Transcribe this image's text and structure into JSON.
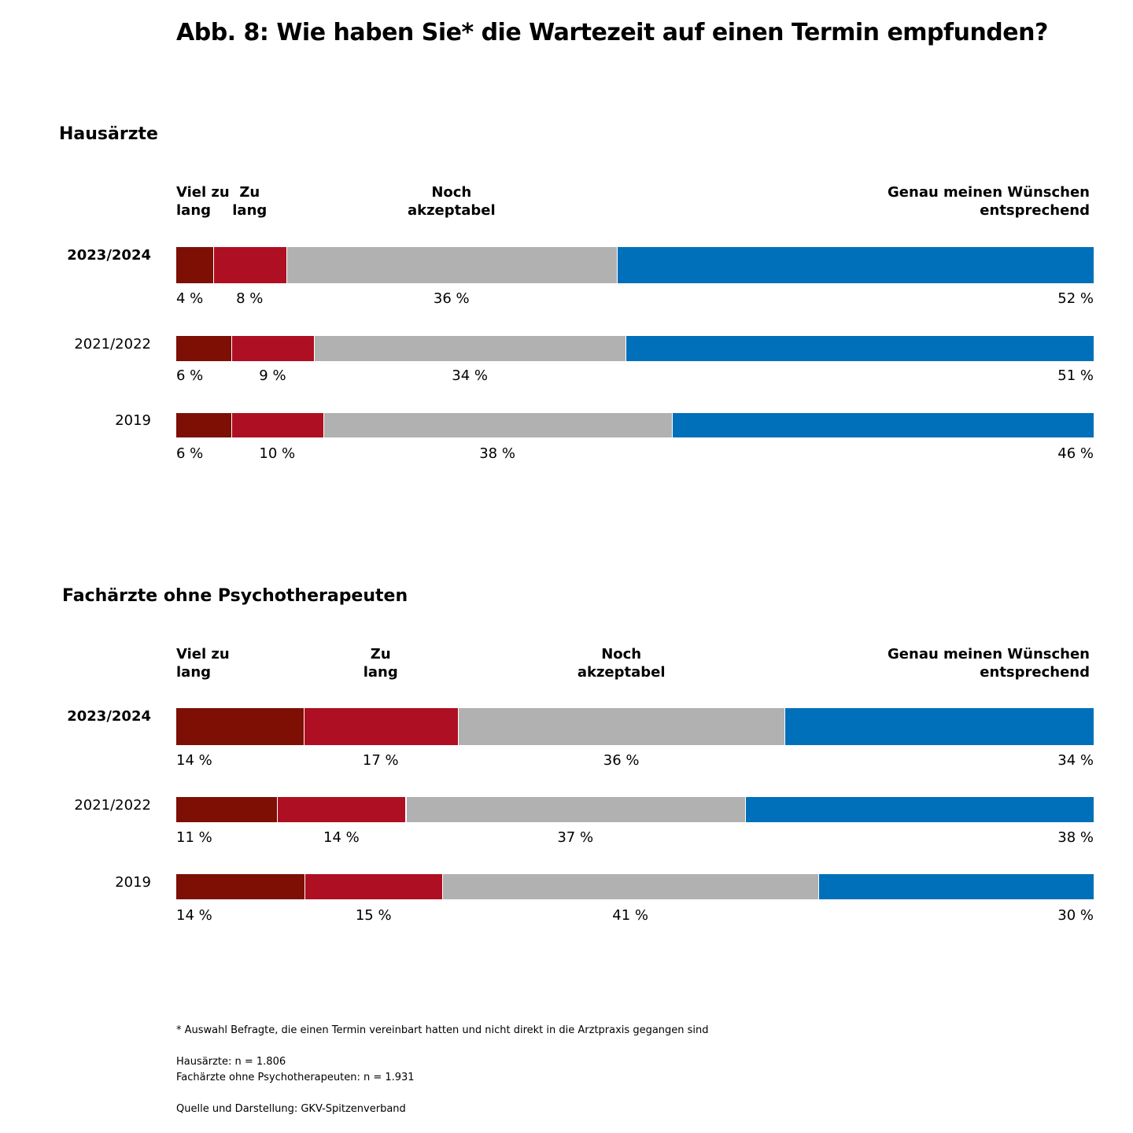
{
  "title": "Abb. 8: Wie haben Sie* die Wartezeit auf einen Termin empfunden?",
  "colors": {
    "viel_zu_lang": "#7D0F05",
    "zu_lang": "#AF0F22",
    "noch_akzeptabel": "#B1B1B1",
    "genau": "#0070BA"
  },
  "chart_data": [
    {
      "type": "bar",
      "orientation": "horizontal-stacked",
      "title": "Hausärzte",
      "categories": [
        [
          "Viel zu",
          "lang"
        ],
        [
          "Zu",
          "lang"
        ],
        [
          "Noch",
          "akzeptabel"
        ],
        [
          "Genau meinen Wünschen",
          "entsprechend"
        ]
      ],
      "rows": [
        {
          "label": "2023/2024",
          "bold": true,
          "values": [
            4,
            8,
            36,
            52
          ],
          "labels": [
            "4 %",
            "8 %",
            "36 %",
            "52 %"
          ]
        },
        {
          "label": "2021/2022",
          "bold": false,
          "values": [
            6,
            9,
            34,
            51
          ],
          "labels": [
            "6 %",
            "9 %",
            "34 %",
            "51 %"
          ]
        },
        {
          "label": "2019",
          "bold": false,
          "values": [
            6,
            10,
            38,
            46
          ],
          "labels": [
            "6 %",
            "10 %",
            "38 %",
            "46 %"
          ]
        }
      ],
      "xlim": [
        0,
        100
      ]
    },
    {
      "type": "bar",
      "orientation": "horizontal-stacked",
      "title": "Fachärzte ohne Psychotherapeuten",
      "categories": [
        [
          "Viel zu",
          "lang"
        ],
        [
          "Zu",
          "lang"
        ],
        [
          "Noch",
          "akzeptabel"
        ],
        [
          "Genau meinen Wünschen",
          "entsprechend"
        ]
      ],
      "rows": [
        {
          "label": "2023/2024",
          "bold": true,
          "values": [
            14,
            17,
            36,
            34
          ],
          "labels": [
            "14 %",
            "17 %",
            "36 %",
            "34 %"
          ]
        },
        {
          "label": "2021/2022",
          "bold": false,
          "values": [
            11,
            14,
            37,
            38
          ],
          "labels": [
            "11 %",
            "14 %",
            "37 %",
            "38 %"
          ]
        },
        {
          "label": "2019",
          "bold": false,
          "values": [
            14,
            15,
            41,
            30
          ],
          "labels": [
            "14 %",
            "15 %",
            "41 %",
            "30 %"
          ]
        }
      ],
      "xlim": [
        0,
        100
      ]
    }
  ],
  "footnotes": {
    "asterisk": "* Auswahl Befragte, die einen Termin vereinbart hatten und nicht direkt in die Arztpraxis gegangen sind",
    "n_hausaerzte": "Hausärzte: n = 1.806",
    "n_fachaerzte": "Fachärzte ohne Psychotherapeuten: n = 1.931",
    "source": "Quelle und Darstellung: GKV-Spitzenverband"
  }
}
